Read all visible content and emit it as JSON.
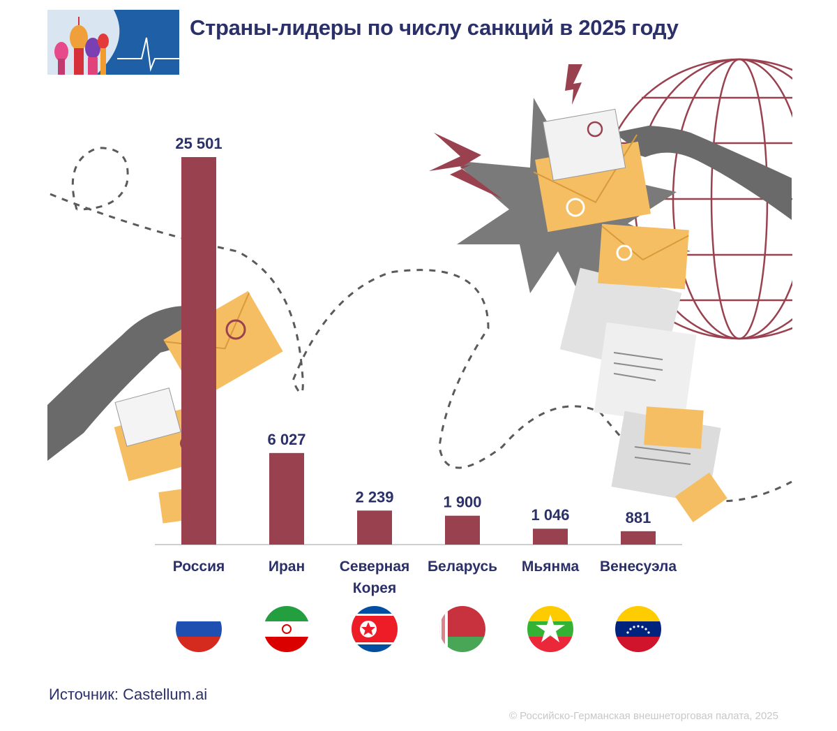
{
  "header": {
    "title": "Страны-лидеры по числу санкций в 2025 году",
    "logo_icon": "saint-basil-cathedral-heartbeat-logo"
  },
  "chart_data": {
    "type": "bar",
    "title": "Страны-лидеры по числу санкций в 2025 году",
    "categories": [
      "Россия",
      "Иран",
      "Северная Корея",
      "Беларусь",
      "Мьянма",
      "Венесуэла"
    ],
    "category_lines": [
      [
        "Россия"
      ],
      [
        "Иран"
      ],
      [
        "Северная",
        "Корея"
      ],
      [
        "Беларусь"
      ],
      [
        "Мьянма"
      ],
      [
        "Венесуэла"
      ]
    ],
    "values": [
      25501,
      6027,
      2239,
      1900,
      1046,
      881
    ],
    "value_labels": [
      "25 501",
      "6 027",
      "2 239",
      "1 900",
      "1 046",
      "881"
    ],
    "xlabel": "",
    "ylabel": "",
    "ylim": [
      0,
      25501
    ],
    "grid": false,
    "bar_color": "#9a4150",
    "flag_icons": [
      "russia-flag-icon",
      "iran-flag-icon",
      "north-korea-flag-icon",
      "belarus-flag-icon",
      "myanmar-flag-icon",
      "venezuela-flag-icon"
    ]
  },
  "footer": {
    "source": "Источник: Castellum.ai",
    "copyright": "© Российско-Германская внешнеторговая палата, 2025"
  },
  "colors": {
    "title": "#2b3069",
    "bar": "#9a4150",
    "envelope": "#f6be62",
    "globe": "#9a4150"
  }
}
